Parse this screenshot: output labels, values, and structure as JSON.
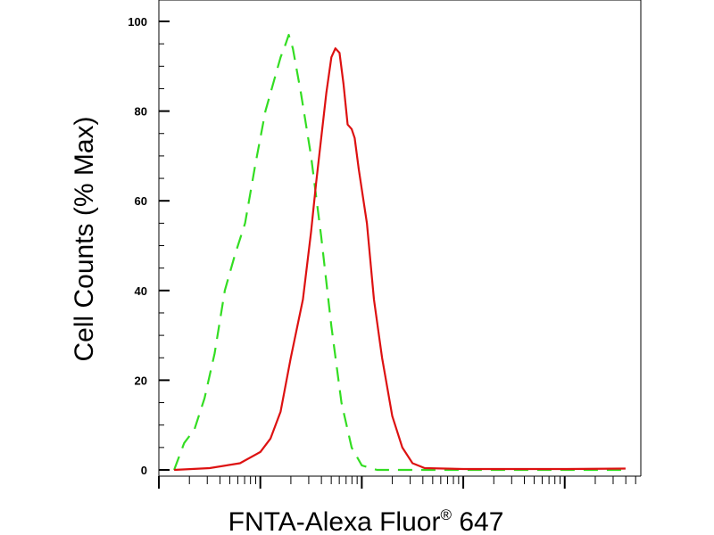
{
  "chart_data": {
    "type": "line",
    "title": "",
    "xlabel": "FNTA-Alexa Fluor",
    "xlabel_superscript": "®",
    "xlabel_suffix": " 647",
    "ylabel": "Cell Counts (% Max)",
    "x_scale": "log",
    "x_tick_labels_shown": false,
    "ylim": [
      0,
      100
    ],
    "y_ticks": [
      "0",
      "20",
      "40",
      "60",
      "80",
      "100"
    ],
    "grid": false,
    "legend": "none",
    "series": [
      {
        "color": "#33dd22",
        "style": "dashed",
        "points": [
          [
            -0.85,
            0
          ],
          [
            -0.75,
            6
          ],
          [
            -0.65,
            9
          ],
          [
            -0.55,
            16
          ],
          [
            -0.45,
            26
          ],
          [
            -0.35,
            40
          ],
          [
            -0.25,
            48
          ],
          [
            -0.15,
            55
          ],
          [
            -0.05,
            68
          ],
          [
            0.05,
            80
          ],
          [
            0.15,
            88
          ],
          [
            0.2,
            92
          ],
          [
            0.25,
            95
          ],
          [
            0.28,
            97
          ],
          [
            0.32,
            94
          ],
          [
            0.4,
            84
          ],
          [
            0.5,
            70
          ],
          [
            0.6,
            52
          ],
          [
            0.7,
            32
          ],
          [
            0.8,
            15
          ],
          [
            0.9,
            5
          ],
          [
            1.0,
            1
          ],
          [
            1.15,
            0
          ],
          [
            1.4,
            0
          ],
          [
            2.0,
            0
          ],
          [
            3.0,
            0
          ],
          [
            3.6,
            0
          ]
        ]
      },
      {
        "color": "#dd1111",
        "style": "solid",
        "points": [
          [
            -0.85,
            0
          ],
          [
            -0.5,
            0.4
          ],
          [
            -0.2,
            1.5
          ],
          [
            0.0,
            4
          ],
          [
            0.1,
            7
          ],
          [
            0.2,
            13
          ],
          [
            0.3,
            25
          ],
          [
            0.42,
            38
          ],
          [
            0.5,
            53
          ],
          [
            0.55,
            64
          ],
          [
            0.6,
            74
          ],
          [
            0.65,
            84
          ],
          [
            0.7,
            92
          ],
          [
            0.74,
            94
          ],
          [
            0.78,
            93
          ],
          [
            0.82,
            86
          ],
          [
            0.86,
            77
          ],
          [
            0.9,
            76
          ],
          [
            0.93,
            74
          ],
          [
            0.97,
            67
          ],
          [
            1.05,
            55
          ],
          [
            1.12,
            38
          ],
          [
            1.2,
            25
          ],
          [
            1.3,
            12
          ],
          [
            1.4,
            5
          ],
          [
            1.5,
            1.5
          ],
          [
            1.62,
            0.4
          ],
          [
            2.0,
            0.2
          ],
          [
            3.0,
            0.2
          ],
          [
            3.6,
            0.3
          ]
        ]
      }
    ]
  }
}
